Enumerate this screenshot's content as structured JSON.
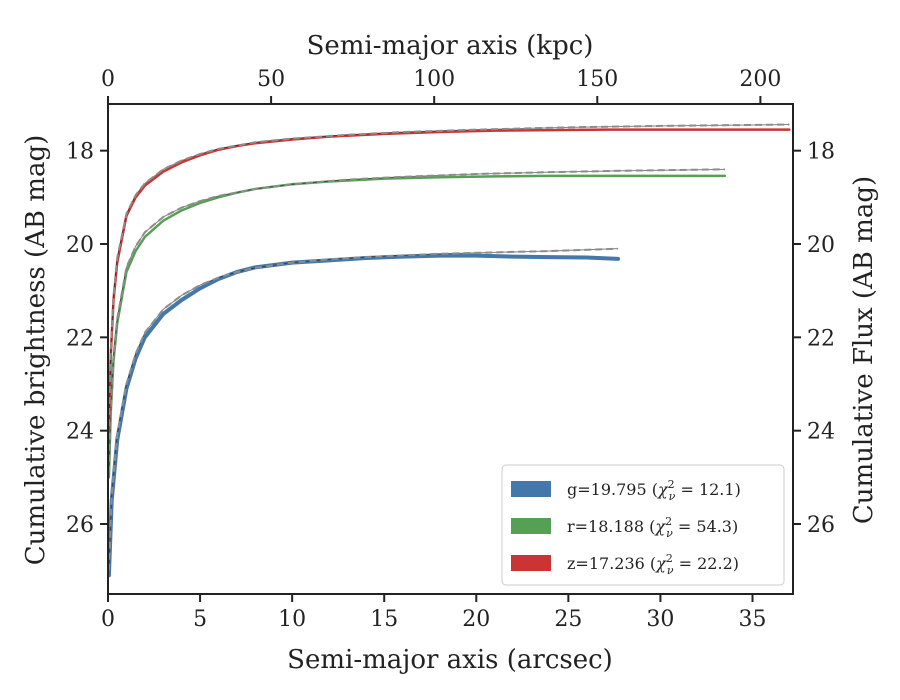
{
  "chart_data": {
    "type": "line",
    "xlabel": "Semi-major axis (arcsec)",
    "xlabel_top": "Semi-major axis (kpc)",
    "ylabel": "Cumulative brightness (AB mag)",
    "ylabel_right": "Cumulative Flux (AB mag)",
    "xlim": [
      0,
      37.2
    ],
    "ylim": [
      27.5,
      17.0
    ],
    "top_xlim": [
      0,
      210
    ],
    "x_ticks": [
      0,
      5,
      10,
      15,
      20,
      25,
      30,
      35
    ],
    "y_ticks": [
      18,
      20,
      22,
      24,
      26
    ],
    "top_x_ticks": [
      0,
      50,
      100,
      150,
      200
    ],
    "inverted_y": true,
    "grid": false,
    "legend_position": "lower-right",
    "series": [
      {
        "name": "g=19.795 (χ²ν = 12.1)",
        "legend_main": "g=19.795 (",
        "legend_chi": "χ",
        "legend_sup": "2",
        "legend_sub": "ν",
        "legend_rest": " = 12.1)",
        "color": "#4477aa",
        "line_width": 4,
        "points": [
          [
            0.05,
            27.1
          ],
          [
            0.2,
            25.5
          ],
          [
            0.5,
            24.2
          ],
          [
            1.0,
            23.1
          ],
          [
            1.5,
            22.45
          ],
          [
            2.0,
            22.0
          ],
          [
            3.0,
            21.5
          ],
          [
            4.0,
            21.2
          ],
          [
            5.0,
            20.95
          ],
          [
            6.0,
            20.75
          ],
          [
            7.0,
            20.6
          ],
          [
            8.0,
            20.5
          ],
          [
            9.0,
            20.45
          ],
          [
            10.0,
            20.4
          ],
          [
            12.0,
            20.35
          ],
          [
            14.0,
            20.3
          ],
          [
            16.0,
            20.27
          ],
          [
            18.0,
            20.25
          ],
          [
            20.0,
            20.25
          ],
          [
            22.0,
            20.27
          ],
          [
            24.0,
            20.28
          ],
          [
            26.0,
            20.29
          ],
          [
            27.7,
            20.32
          ]
        ],
        "model_points": [
          [
            0.05,
            27.0
          ],
          [
            0.2,
            25.4
          ],
          [
            0.5,
            24.1
          ],
          [
            1.0,
            23.0
          ],
          [
            1.5,
            22.35
          ],
          [
            2.0,
            21.9
          ],
          [
            3.0,
            21.4
          ],
          [
            4.0,
            21.1
          ],
          [
            5.0,
            20.88
          ],
          [
            6.0,
            20.72
          ],
          [
            7.0,
            20.6
          ],
          [
            8.0,
            20.51
          ],
          [
            10.0,
            20.4
          ],
          [
            12.0,
            20.33
          ],
          [
            15.0,
            20.26
          ],
          [
            18.0,
            20.21
          ],
          [
            21.0,
            20.18
          ],
          [
            24.0,
            20.15
          ],
          [
            27.7,
            20.1
          ]
        ]
      },
      {
        "name": "r=18.188 (χ²ν = 54.3)",
        "legend_main": "r=18.188 (",
        "legend_chi": "χ",
        "legend_sup": "2",
        "legend_sub": "ν",
        "legend_rest": " = 54.3)",
        "color": "#55a055",
        "line_width": 2.5,
        "points": [
          [
            0.05,
            25.0
          ],
          [
            0.15,
            23.6
          ],
          [
            0.3,
            22.5
          ],
          [
            0.5,
            21.7
          ],
          [
            1.0,
            20.6
          ],
          [
            1.5,
            20.15
          ],
          [
            2.0,
            19.85
          ],
          [
            3.0,
            19.5
          ],
          [
            4.0,
            19.28
          ],
          [
            5.0,
            19.12
          ],
          [
            6.0,
            19.0
          ],
          [
            7.0,
            18.9
          ],
          [
            8.0,
            18.82
          ],
          [
            10.0,
            18.72
          ],
          [
            12.0,
            18.66
          ],
          [
            15.0,
            18.6
          ],
          [
            18.0,
            18.57
          ],
          [
            21.0,
            18.55
          ],
          [
            24.0,
            18.54
          ],
          [
            27.0,
            18.54
          ],
          [
            30.0,
            18.54
          ],
          [
            33.5,
            18.54
          ]
        ],
        "model_points": [
          [
            0.05,
            24.9
          ],
          [
            0.15,
            23.5
          ],
          [
            0.3,
            22.4
          ],
          [
            0.5,
            21.6
          ],
          [
            1.0,
            20.5
          ],
          [
            1.5,
            20.05
          ],
          [
            2.0,
            19.75
          ],
          [
            3.0,
            19.42
          ],
          [
            4.0,
            19.22
          ],
          [
            5.0,
            19.08
          ],
          [
            6.0,
            18.97
          ],
          [
            8.0,
            18.82
          ],
          [
            10.0,
            18.72
          ],
          [
            13.0,
            18.62
          ],
          [
            16.0,
            18.56
          ],
          [
            20.0,
            18.5
          ],
          [
            24.0,
            18.46
          ],
          [
            28.0,
            18.43
          ],
          [
            33.5,
            18.4
          ]
        ]
      },
      {
        "name": "z=17.236 (χ²ν = 22.2)",
        "legend_main": "z=17.236 (",
        "legend_chi": "χ",
        "legend_sup": "2",
        "legend_sub": "ν",
        "legend_rest": " = 22.2)",
        "color": "#cc3333",
        "line_width": 2.5,
        "points": [
          [
            0.05,
            24.0
          ],
          [
            0.15,
            22.4
          ],
          [
            0.3,
            21.2
          ],
          [
            0.5,
            20.4
          ],
          [
            1.0,
            19.4
          ],
          [
            1.5,
            19.0
          ],
          [
            2.0,
            18.75
          ],
          [
            3.0,
            18.45
          ],
          [
            4.0,
            18.25
          ],
          [
            5.0,
            18.1
          ],
          [
            6.0,
            17.98
          ],
          [
            7.0,
            17.9
          ],
          [
            8.0,
            17.84
          ],
          [
            10.0,
            17.76
          ],
          [
            12.0,
            17.7
          ],
          [
            15.0,
            17.64
          ],
          [
            18.0,
            17.6
          ],
          [
            21.0,
            17.57
          ],
          [
            24.0,
            17.56
          ],
          [
            27.0,
            17.55
          ],
          [
            30.0,
            17.55
          ],
          [
            33.0,
            17.55
          ],
          [
            37.0,
            17.55
          ]
        ],
        "model_points": [
          [
            0.05,
            23.9
          ],
          [
            0.15,
            22.3
          ],
          [
            0.3,
            21.1
          ],
          [
            0.5,
            20.3
          ],
          [
            1.0,
            19.35
          ],
          [
            1.5,
            18.95
          ],
          [
            2.0,
            18.7
          ],
          [
            3.0,
            18.4
          ],
          [
            4.0,
            18.21
          ],
          [
            5.0,
            18.07
          ],
          [
            6.0,
            17.96
          ],
          [
            8.0,
            17.82
          ],
          [
            10.0,
            17.74
          ],
          [
            13.0,
            17.66
          ],
          [
            16.0,
            17.6
          ],
          [
            20.0,
            17.55
          ],
          [
            25.0,
            17.5
          ],
          [
            30.0,
            17.47
          ],
          [
            37.0,
            17.44
          ]
        ]
      }
    ]
  }
}
